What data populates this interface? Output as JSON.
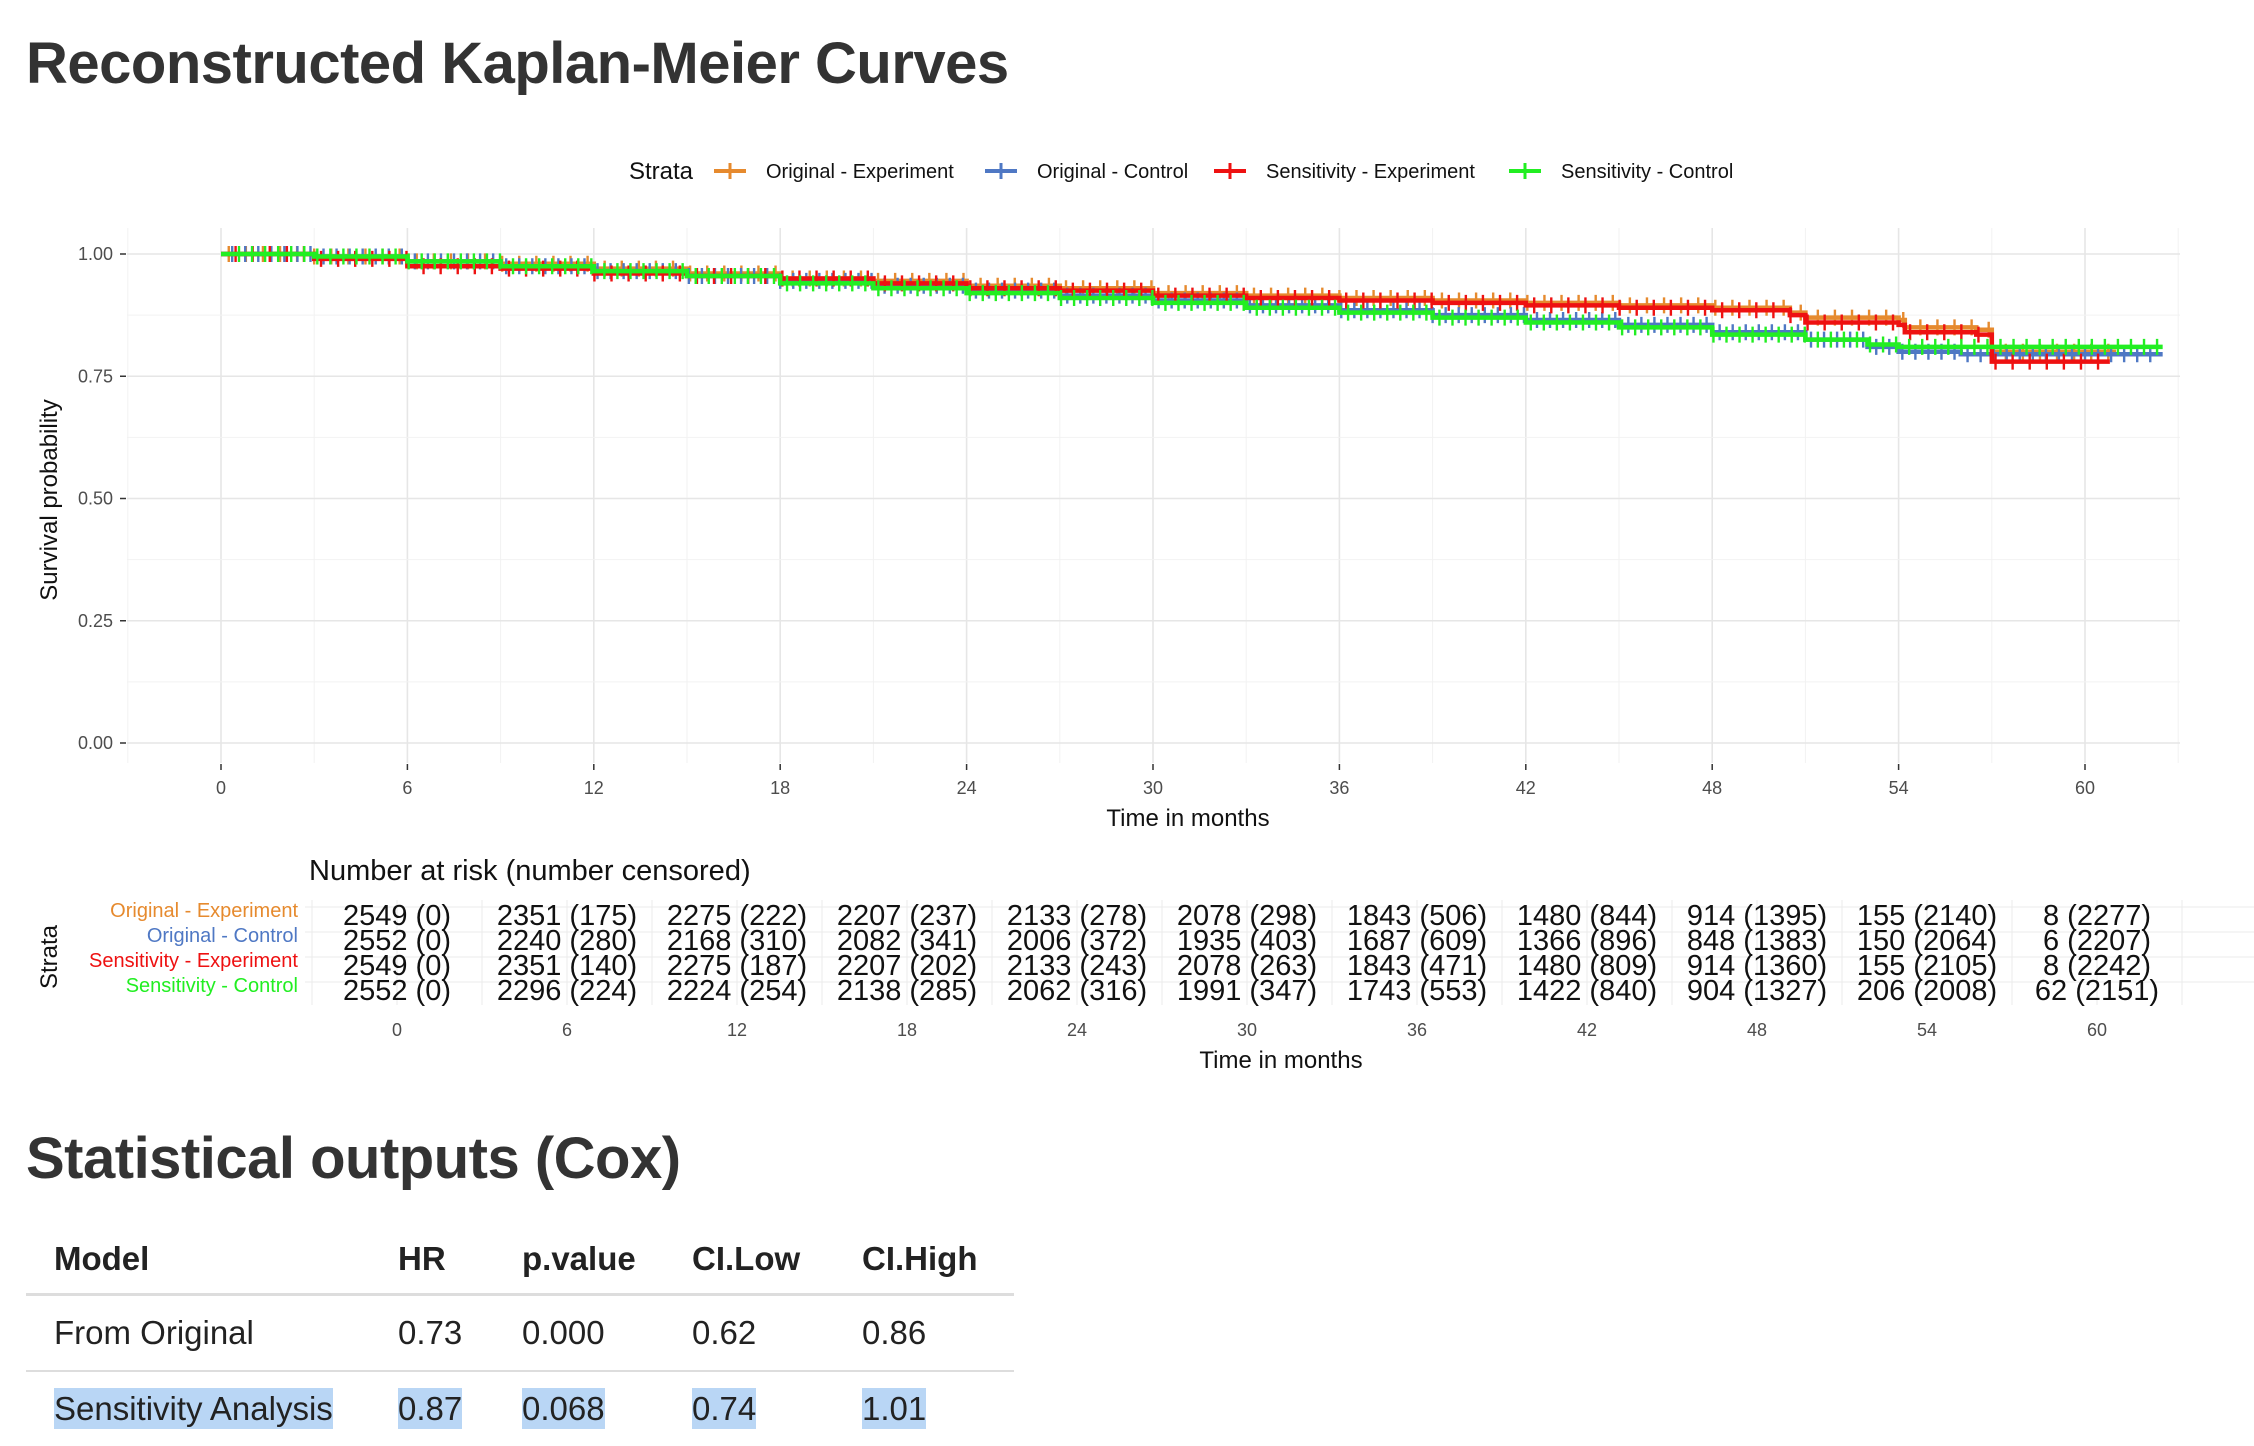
{
  "page_title": "Reconstructed Kaplan-Meier Curves",
  "stats_title": "Statistical outputs (Cox)",
  "colors": {
    "orig_exp": "#E68A2E",
    "orig_ctrl": "#4F78C4",
    "sens_exp": "#EE1111",
    "sens_ctrl": "#22EE22",
    "highlight": "#B9D6F5"
  },
  "chart_data": [
    {
      "type": "line",
      "title": "Reconstructed Kaplan-Meier Curves",
      "xlabel": "Time in months",
      "ylabel": "Survival probability",
      "xlim": [
        -2.5,
        63.5
      ],
      "ylim": [
        -0.04,
        1.05
      ],
      "x_ticks": [
        0,
        6,
        12,
        18,
        24,
        30,
        36,
        42,
        48,
        54,
        60
      ],
      "y_ticks": [
        0.0,
        0.25,
        0.5,
        0.75,
        1.0
      ],
      "y_tick_labels": [
        "0.00",
        "0.25",
        "0.50",
        "0.75",
        "1.00"
      ],
      "grid": true,
      "legend_title": "Strata",
      "legend_position": "top",
      "series": [
        {
          "name": "Original - Experiment",
          "color": "#E68A2E",
          "x": [
            0,
            3,
            6,
            9,
            12,
            15,
            18,
            21,
            24,
            27,
            30,
            33,
            36,
            39,
            42,
            45,
            48,
            50.5,
            51,
            54,
            54.2,
            56.5,
            57,
            61
          ],
          "y": [
            1.0,
            0.995,
            0.985,
            0.98,
            0.97,
            0.96,
            0.95,
            0.945,
            0.935,
            0.93,
            0.92,
            0.915,
            0.91,
            0.905,
            0.9,
            0.895,
            0.89,
            0.88,
            0.87,
            0.865,
            0.85,
            0.845,
            0.8,
            0.8
          ]
        },
        {
          "name": "Original - Control",
          "color": "#4F78C4",
          "x": [
            0,
            3,
            6,
            9,
            12,
            15,
            18,
            21,
            24,
            27,
            30,
            33,
            36,
            39,
            42,
            45,
            48,
            51,
            53,
            54,
            56,
            57,
            62.5
          ],
          "y": [
            1.0,
            0.995,
            0.985,
            0.975,
            0.965,
            0.955,
            0.945,
            0.935,
            0.925,
            0.915,
            0.905,
            0.895,
            0.885,
            0.875,
            0.865,
            0.855,
            0.84,
            0.825,
            0.81,
            0.8,
            0.795,
            0.795,
            0.795
          ]
        },
        {
          "name": "Sensitivity - Experiment",
          "color": "#EE1111",
          "x": [
            0,
            3,
            6,
            9,
            12,
            15,
            18,
            21,
            24,
            27,
            30,
            33,
            36,
            39,
            42,
            45,
            48,
            50.5,
            51,
            54,
            54.2,
            56.5,
            57,
            60.8
          ],
          "y": [
            1.0,
            0.99,
            0.975,
            0.97,
            0.96,
            0.955,
            0.95,
            0.94,
            0.93,
            0.925,
            0.915,
            0.91,
            0.905,
            0.9,
            0.895,
            0.89,
            0.885,
            0.875,
            0.86,
            0.855,
            0.84,
            0.835,
            0.78,
            0.78
          ]
        },
        {
          "name": "Sensitivity - Control",
          "color": "#22EE22",
          "x": [
            0,
            3,
            6,
            9,
            12,
            15,
            18,
            21,
            24,
            27,
            30,
            33,
            36,
            39,
            42,
            45,
            48,
            51,
            53,
            54,
            56,
            57,
            62.5
          ],
          "y": [
            1.0,
            0.995,
            0.985,
            0.975,
            0.965,
            0.955,
            0.94,
            0.93,
            0.92,
            0.91,
            0.9,
            0.89,
            0.88,
            0.87,
            0.86,
            0.85,
            0.835,
            0.825,
            0.815,
            0.81,
            0.81,
            0.81,
            0.81
          ]
        }
      ]
    },
    {
      "type": "table",
      "title": "Number at risk (number censored)",
      "xlabel": "Time in months",
      "ylabel": "Strata",
      "x": [
        0,
        6,
        12,
        18,
        24,
        30,
        36,
        42,
        48,
        54,
        60
      ],
      "rows": [
        {
          "name": "Original - Experiment",
          "color": "#E68A2E",
          "cells": [
            "2549 (0)",
            "2351 (175)",
            "2275 (222)",
            "2207 (237)",
            "2133 (278)",
            "2078 (298)",
            "1843 (506)",
            "1480 (844)",
            "914 (1395)",
            "155 (2140)",
            "8 (2277)"
          ]
        },
        {
          "name": "Original - Control",
          "color": "#4F78C4",
          "cells": [
            "2552 (0)",
            "2240 (280)",
            "2168 (310)",
            "2082 (341)",
            "2006 (372)",
            "1935 (403)",
            "1687 (609)",
            "1366 (896)",
            "848 (1383)",
            "150 (2064)",
            "6 (2207)"
          ]
        },
        {
          "name": "Sensitivity - Experiment",
          "color": "#EE1111",
          "cells": [
            "2549 (0)",
            "2351 (140)",
            "2275 (187)",
            "2207 (202)",
            "2133 (243)",
            "2078 (263)",
            "1843 (471)",
            "1480 (809)",
            "914 (1360)",
            "155 (2105)",
            "8 (2242)"
          ]
        },
        {
          "name": "Sensitivity - Control",
          "color": "#22EE22",
          "cells": [
            "2552 (0)",
            "2296 (224)",
            "2224 (254)",
            "2138 (285)",
            "2062 (316)",
            "1991 (347)",
            "1743 (553)",
            "1422 (840)",
            "904 (1327)",
            "206 (2008)",
            "62 (2151)"
          ]
        }
      ]
    }
  ],
  "cox_table": {
    "headers": {
      "model": "Model",
      "hr": "HR",
      "p": "p.value",
      "cil": "CI.Low",
      "cih": "CI.High"
    },
    "rows": [
      {
        "model": "From Original",
        "hr": "0.73",
        "p": "0.000",
        "cil": "0.62",
        "cih": "0.86"
      },
      {
        "model": "Sensitivity Analysis",
        "hr": "0.87",
        "p": "0.068",
        "cil": "0.74",
        "cih": "1.01"
      }
    ]
  }
}
